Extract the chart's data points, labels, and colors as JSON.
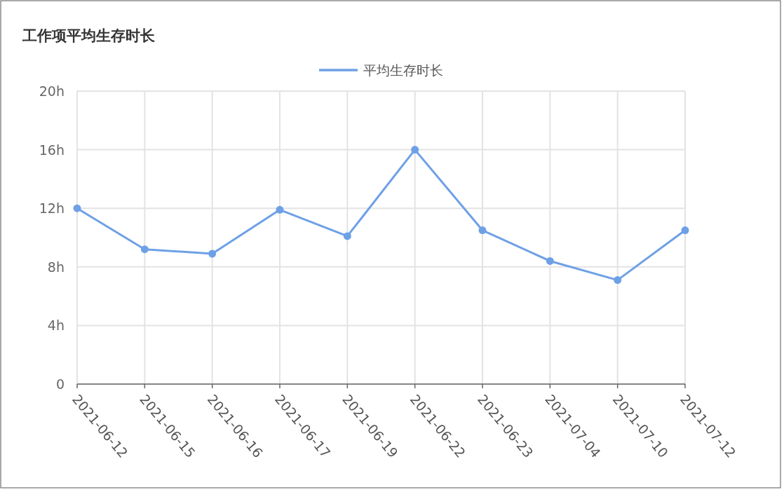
{
  "chart_data": {
    "type": "line",
    "title": "工作项平均生存时长",
    "categories": [
      "2021-06-12",
      "2021-06-15",
      "2021-06-16",
      "2021-06-17",
      "2021-06-19",
      "2021-06-22",
      "2021-06-23",
      "2021-07-04",
      "2021-07-10",
      "2021-07-12"
    ],
    "series": [
      {
        "name": "平均生存时长",
        "color": "#6ea0e6",
        "values": [
          12.0,
          9.2,
          8.9,
          11.9,
          10.1,
          16.0,
          10.5,
          8.4,
          7.1,
          10.5
        ]
      }
    ],
    "ylim": [
      0,
      20
    ],
    "yticks": [
      {
        "value": 0,
        "label": "0"
      },
      {
        "value": 4,
        "label": "4h"
      },
      {
        "value": 8,
        "label": "8h"
      },
      {
        "value": 12,
        "label": "12h"
      },
      {
        "value": 16,
        "label": "16h"
      },
      {
        "value": 20,
        "label": "20h"
      }
    ],
    "grid": true,
    "legend": "top",
    "marker": "circle",
    "line_style": "solid"
  }
}
